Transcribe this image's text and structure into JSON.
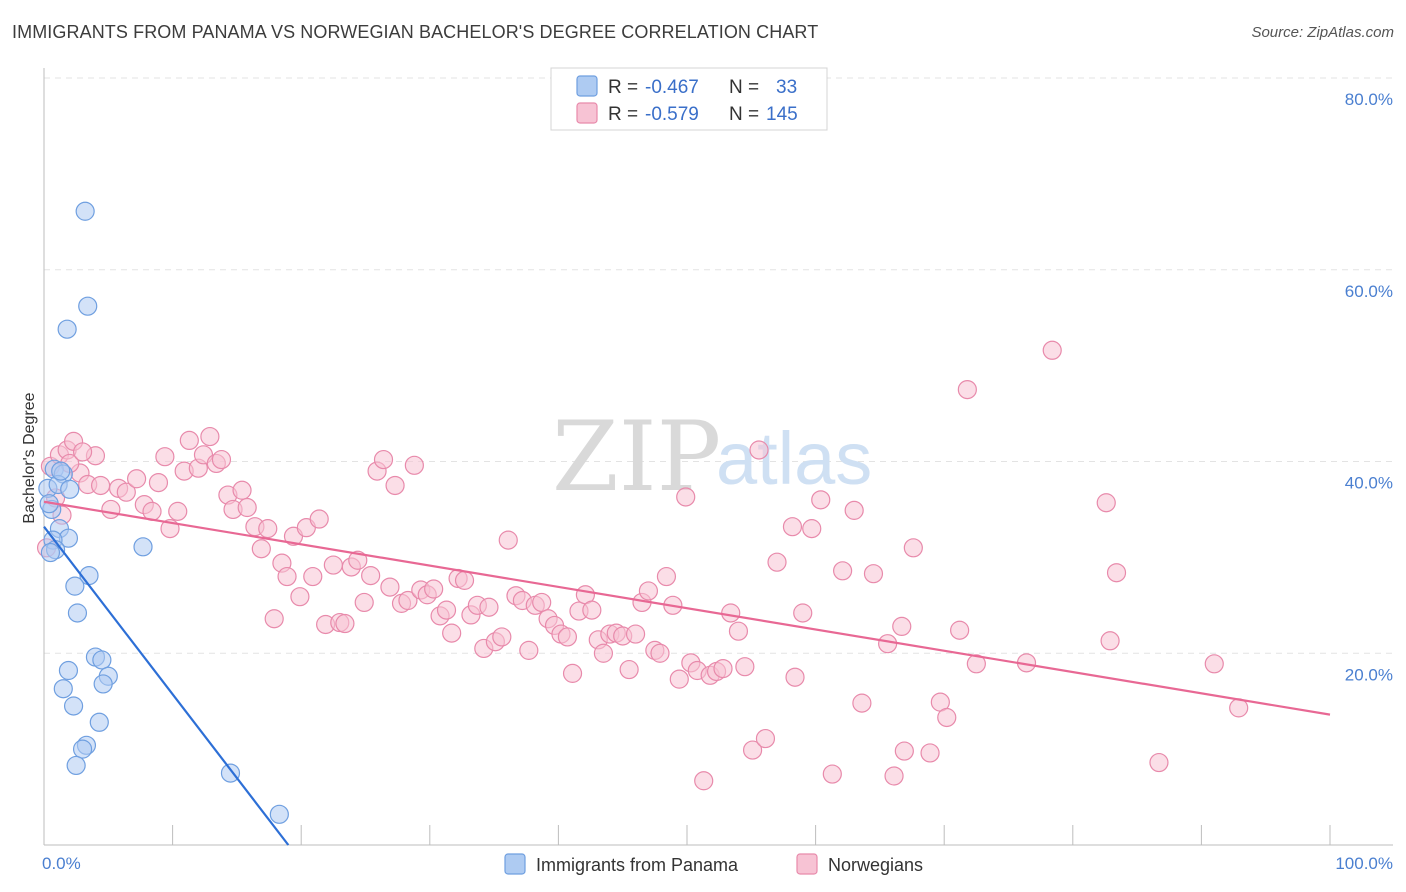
{
  "title": "IMMIGRANTS FROM PANAMA VS NORWEGIAN BACHELOR'S DEGREE CORRELATION CHART",
  "source": "Source: ZipAtlas.com",
  "watermark": {
    "zip": "ZIP",
    "atlas": "atlas"
  },
  "colors": {
    "blue_fill": "#aecbf2",
    "blue_stroke": "#6f9fe0",
    "blue_line": "#2d6fd6",
    "pink_fill": "#f7c3d4",
    "pink_stroke": "#e88aab",
    "pink_line": "#e86894",
    "grid": "#e3e3e3",
    "tick_text": "#4a7fd0"
  },
  "legend": {
    "r_label": "R =",
    "n_label": "N =",
    "series": [
      {
        "r": "-0.467",
        "n": "33"
      },
      {
        "r": "-0.579",
        "n": "145"
      }
    ]
  },
  "chart_data": {
    "type": "scatter",
    "title": "IMMIGRANTS FROM PANAMA VS NORWEGIAN BACHELOR'S DEGREE CORRELATION CHART",
    "xlabel": "",
    "ylabel": "Bachelor's Degree",
    "xlim": [
      0,
      100
    ],
    "ylim": [
      0,
      80
    ],
    "x_tick_labels": [
      "0.0%",
      "100.0%"
    ],
    "y_ticks": [
      20,
      40,
      60,
      80
    ],
    "y_tick_labels": [
      "20.0%",
      "40.0%",
      "60.0%",
      "80.0%"
    ],
    "legend_position": "top-center",
    "series": [
      {
        "name": "Immigrants from Panama",
        "color": "#aecbf2",
        "r": -0.467,
        "n": 33,
        "trend": [
          [
            0,
            33.2
          ],
          [
            19.0,
            0
          ]
        ],
        "points": [
          [
            3.2,
            66.1
          ],
          [
            3.4,
            56.2
          ],
          [
            1.8,
            53.8
          ],
          [
            0.8,
            39.2
          ],
          [
            1.5,
            38.7
          ],
          [
            0.3,
            37.2
          ],
          [
            1.1,
            37.6
          ],
          [
            2.0,
            37.1
          ],
          [
            0.6,
            35.0
          ],
          [
            1.2,
            33.0
          ],
          [
            1.9,
            32.0
          ],
          [
            0.7,
            31.8
          ],
          [
            0.9,
            30.8
          ],
          [
            7.7,
            31.1
          ],
          [
            3.5,
            28.1
          ],
          [
            2.4,
            27.0
          ],
          [
            2.6,
            24.2
          ],
          [
            4.0,
            19.6
          ],
          [
            1.9,
            18.2
          ],
          [
            4.5,
            19.3
          ],
          [
            5.0,
            17.6
          ],
          [
            4.6,
            16.8
          ],
          [
            1.5,
            16.3
          ],
          [
            2.3,
            14.5
          ],
          [
            4.3,
            12.8
          ],
          [
            3.3,
            10.4
          ],
          [
            3.0,
            10.0
          ],
          [
            2.5,
            8.3
          ],
          [
            14.5,
            7.5
          ],
          [
            18.3,
            3.2
          ],
          [
            0.4,
            35.6
          ],
          [
            0.5,
            30.5
          ],
          [
            1.3,
            39.0
          ]
        ]
      },
      {
        "name": "Norwegians",
        "color": "#f7c3d4",
        "r": -0.579,
        "n": 145,
        "trend": [
          [
            0,
            35.8
          ],
          [
            100,
            13.6
          ]
        ],
        "points": [
          [
            0.2,
            31.0
          ],
          [
            0.5,
            39.5
          ],
          [
            1.2,
            40.7
          ],
          [
            1.8,
            41.2
          ],
          [
            2.3,
            42.1
          ],
          [
            2.8,
            38.8
          ],
          [
            3.4,
            37.6
          ],
          [
            4.0,
            40.6
          ],
          [
            4.4,
            37.5
          ],
          [
            5.2,
            35.0
          ],
          [
            5.8,
            37.2
          ],
          [
            6.4,
            36.8
          ],
          [
            7.2,
            38.2
          ],
          [
            7.8,
            35.5
          ],
          [
            8.4,
            34.8
          ],
          [
            8.9,
            37.8
          ],
          [
            9.4,
            40.5
          ],
          [
            9.8,
            33.0
          ],
          [
            10.4,
            34.8
          ],
          [
            10.9,
            39.0
          ],
          [
            11.3,
            42.2
          ],
          [
            12.0,
            39.3
          ],
          [
            12.4,
            40.7
          ],
          [
            12.9,
            42.6
          ],
          [
            13.4,
            39.8
          ],
          [
            13.8,
            40.2
          ],
          [
            14.3,
            36.5
          ],
          [
            14.7,
            35.0
          ],
          [
            15.4,
            37.0
          ],
          [
            15.8,
            35.2
          ],
          [
            16.4,
            33.2
          ],
          [
            16.9,
            30.9
          ],
          [
            17.4,
            33.0
          ],
          [
            17.9,
            23.6
          ],
          [
            18.5,
            29.4
          ],
          [
            18.9,
            28.0
          ],
          [
            19.4,
            32.2
          ],
          [
            19.9,
            25.9
          ],
          [
            20.4,
            33.1
          ],
          [
            20.9,
            28.0
          ],
          [
            21.4,
            34.0
          ],
          [
            21.9,
            23.0
          ],
          [
            22.5,
            29.2
          ],
          [
            23.0,
            23.2
          ],
          [
            23.4,
            23.1
          ],
          [
            23.9,
            29.0
          ],
          [
            24.4,
            29.7
          ],
          [
            24.9,
            25.3
          ],
          [
            25.4,
            28.1
          ],
          [
            25.9,
            39.0
          ],
          [
            26.4,
            40.2
          ],
          [
            26.9,
            26.9
          ],
          [
            27.3,
            37.5
          ],
          [
            27.8,
            25.2
          ],
          [
            28.3,
            25.5
          ],
          [
            28.8,
            39.6
          ],
          [
            29.3,
            26.6
          ],
          [
            29.8,
            26.1
          ],
          [
            30.3,
            26.7
          ],
          [
            30.8,
            23.9
          ],
          [
            31.3,
            24.5
          ],
          [
            31.7,
            22.1
          ],
          [
            32.2,
            27.8
          ],
          [
            32.7,
            27.6
          ],
          [
            33.2,
            24.0
          ],
          [
            33.7,
            25.0
          ],
          [
            34.2,
            20.5
          ],
          [
            34.6,
            24.8
          ],
          [
            35.1,
            21.2
          ],
          [
            35.6,
            21.7
          ],
          [
            36.1,
            31.8
          ],
          [
            36.7,
            26.0
          ],
          [
            37.2,
            25.5
          ],
          [
            37.7,
            20.3
          ],
          [
            38.2,
            25.0
          ],
          [
            38.7,
            25.3
          ],
          [
            39.2,
            23.6
          ],
          [
            39.7,
            22.9
          ],
          [
            40.2,
            22.0
          ],
          [
            40.7,
            21.7
          ],
          [
            41.1,
            17.9
          ],
          [
            41.6,
            24.4
          ],
          [
            42.1,
            26.1
          ],
          [
            42.6,
            24.5
          ],
          [
            43.1,
            21.4
          ],
          [
            43.5,
            20.0
          ],
          [
            44.0,
            22.0
          ],
          [
            44.5,
            22.1
          ],
          [
            45.0,
            21.8
          ],
          [
            45.5,
            18.3
          ],
          [
            46.0,
            22.0
          ],
          [
            46.5,
            25.3
          ],
          [
            47.0,
            26.5
          ],
          [
            47.5,
            20.3
          ],
          [
            47.9,
            20.0
          ],
          [
            48.4,
            28.0
          ],
          [
            48.9,
            25.0
          ],
          [
            49.4,
            17.3
          ],
          [
            49.9,
            36.3
          ],
          [
            50.3,
            19.0
          ],
          [
            50.8,
            18.2
          ],
          [
            51.3,
            6.7
          ],
          [
            51.8,
            17.7
          ],
          [
            52.3,
            18.1
          ],
          [
            52.8,
            18.4
          ],
          [
            53.4,
            24.2
          ],
          [
            54.0,
            22.3
          ],
          [
            54.5,
            18.6
          ],
          [
            55.1,
            9.9
          ],
          [
            55.6,
            41.2
          ],
          [
            56.1,
            11.1
          ],
          [
            57.0,
            29.5
          ],
          [
            58.2,
            33.2
          ],
          [
            58.4,
            17.5
          ],
          [
            59.0,
            24.2
          ],
          [
            59.7,
            33.0
          ],
          [
            60.4,
            36.0
          ],
          [
            61.3,
            7.4
          ],
          [
            62.1,
            28.6
          ],
          [
            63.0,
            34.9
          ],
          [
            63.6,
            14.8
          ],
          [
            64.5,
            28.3
          ],
          [
            65.6,
            21.0
          ],
          [
            66.1,
            7.2
          ],
          [
            66.7,
            22.8
          ],
          [
            66.9,
            9.8
          ],
          [
            67.6,
            31.0
          ],
          [
            68.9,
            9.6
          ],
          [
            69.7,
            14.9
          ],
          [
            70.2,
            13.3
          ],
          [
            71.2,
            22.4
          ],
          [
            71.8,
            47.5
          ],
          [
            72.5,
            18.9
          ],
          [
            76.4,
            19.0
          ],
          [
            78.4,
            51.6
          ],
          [
            82.6,
            35.7
          ],
          [
            82.9,
            21.3
          ],
          [
            83.4,
            28.4
          ],
          [
            86.7,
            8.6
          ],
          [
            91.0,
            18.9
          ],
          [
            92.9,
            14.3
          ],
          [
            2.0,
            39.8
          ],
          [
            0.9,
            36.2
          ],
          [
            1.4,
            34.4
          ],
          [
            3.0,
            41.0
          ]
        ]
      }
    ]
  }
}
